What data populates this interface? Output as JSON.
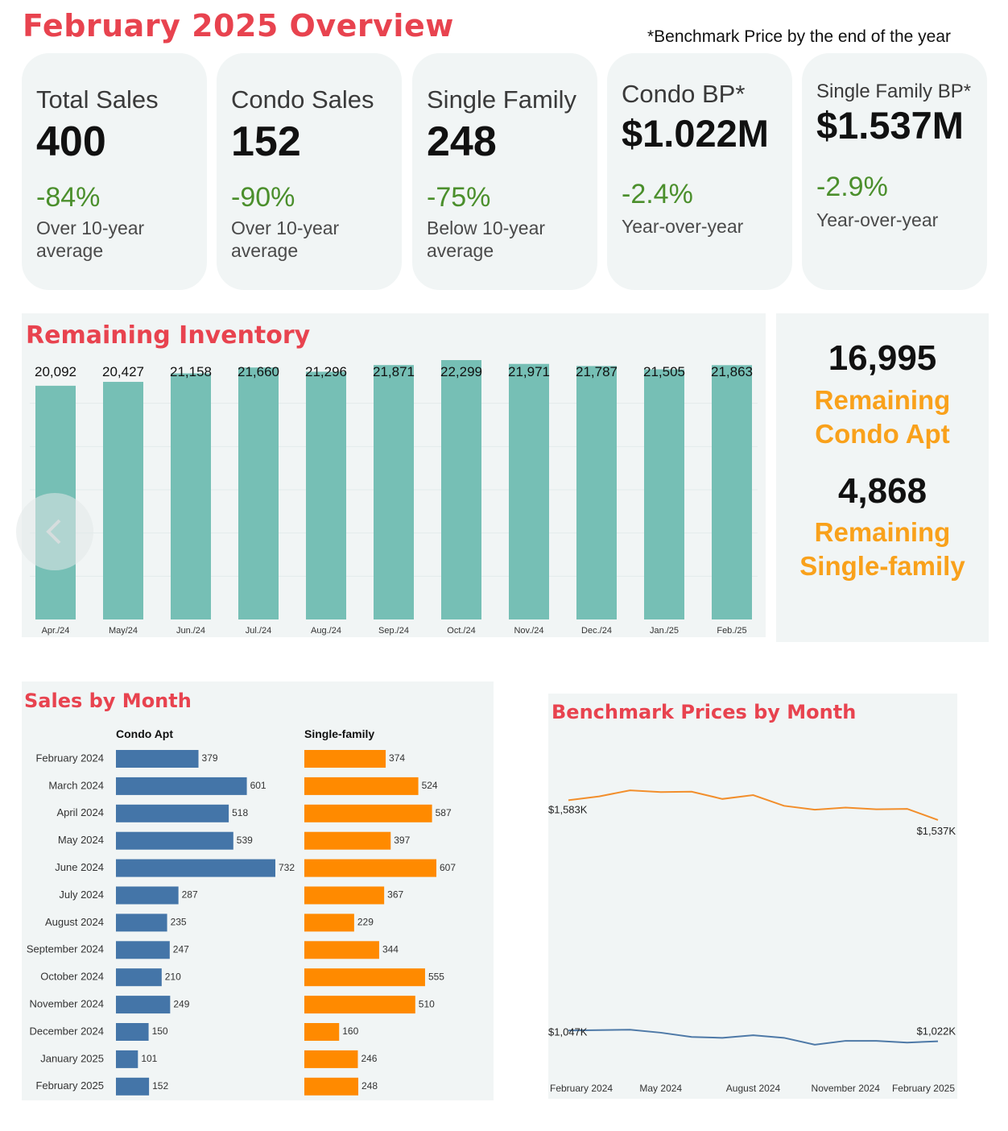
{
  "title": "February 2025 Overview",
  "footnote": "*Benchmark Price by the end of the year",
  "cards": [
    {
      "label": "Total Sales",
      "value": "400",
      "delta": "-84%",
      "note": "Over 10-year average"
    },
    {
      "label": "Condo Sales",
      "value": "152",
      "delta": "-90%",
      "note": "Over 10-year average"
    },
    {
      "label": "Single Family",
      "value": "248",
      "delta": "-75%",
      "note": "Below 10-year average"
    },
    {
      "label": "Condo BP*",
      "value": "$1.022M",
      "delta": "-2.4%",
      "note": "Year-over-year"
    },
    {
      "label": "Single Family BP*",
      "value": "$1.537M",
      "delta": "-2.9%",
      "note": "Year-over-year"
    }
  ],
  "remaining": {
    "condo_value": "16,995",
    "condo_label": "Remaining Condo Apt",
    "single_value": "4,868",
    "single_label": "Remaining Single-family"
  },
  "colors": {
    "title_red": "#e8434f",
    "inventory_bar": "#76bfb5",
    "condo_bar": "#4475a8",
    "single_bar": "#ff8a00",
    "single_line": "#f28e2b",
    "condo_line": "#4e79a7",
    "delta_green": "#4b8f2c",
    "remaining_orange": "#f9a11b"
  },
  "chart_data": [
    {
      "type": "bar",
      "title": "Remaining Inventory",
      "categories": [
        "Apr./24",
        "May/24",
        "Jun./24",
        "Jul./24",
        "Aug./24",
        "Sep./24",
        "Oct./24",
        "Nov./24",
        "Dec./24",
        "Jan./25",
        "Feb./25"
      ],
      "values": [
        20092,
        20427,
        21158,
        21660,
        21296,
        21871,
        22299,
        21971,
        21787,
        21505,
        21863
      ],
      "labels": [
        "20,092",
        "20,427",
        "21,158",
        "21,660",
        "21,296",
        "21,871",
        "22,299",
        "21,971",
        "21,787",
        "21,505",
        "21,863"
      ]
    },
    {
      "type": "bar",
      "orientation": "horizontal",
      "title": "Sales by Month",
      "categories": [
        "February 2024",
        "March 2024",
        "April 2024",
        "May 2024",
        "June 2024",
        "July 2024",
        "August 2024",
        "September 2024",
        "October 2024",
        "November 2024",
        "December 2024",
        "January 2025",
        "February 2025"
      ],
      "series": [
        {
          "name": "Condo Apt",
          "values": [
            379,
            601,
            518,
            539,
            732,
            287,
            235,
            247,
            210,
            249,
            150,
            101,
            152
          ]
        },
        {
          "name": "Single-family",
          "values": [
            374,
            524,
            587,
            397,
            607,
            367,
            229,
            344,
            555,
            510,
            160,
            246,
            248
          ]
        }
      ]
    },
    {
      "type": "line",
      "title": "Benchmark Prices by Month",
      "x": [
        "February 2024",
        "March 2024",
        "April 2024",
        "May 2024",
        "June 2024",
        "July 2024",
        "August 2024",
        "September 2024",
        "October 2024",
        "November 2024",
        "December 2024",
        "January 2025",
        "February 2025"
      ],
      "x_tick_labels": [
        "February 2024",
        "May 2024",
        "August 2024",
        "November 2024",
        "February 2025"
      ],
      "ylim": [
        950,
        1700
      ],
      "series": [
        {
          "name": "Single-family",
          "values": [
            1583,
            1592,
            1606,
            1602,
            1603,
            1586,
            1595,
            1570,
            1561,
            1566,
            1562,
            1563,
            1537
          ],
          "start_label": "$1,583K",
          "end_label": "$1,537K"
        },
        {
          "name": "Condo Apt",
          "values": [
            1047,
            1048,
            1049,
            1042,
            1032,
            1030,
            1036,
            1030,
            1014,
            1023,
            1023,
            1019,
            1022
          ],
          "start_label": "$1,047K",
          "end_label": "$1,022K"
        }
      ]
    }
  ]
}
